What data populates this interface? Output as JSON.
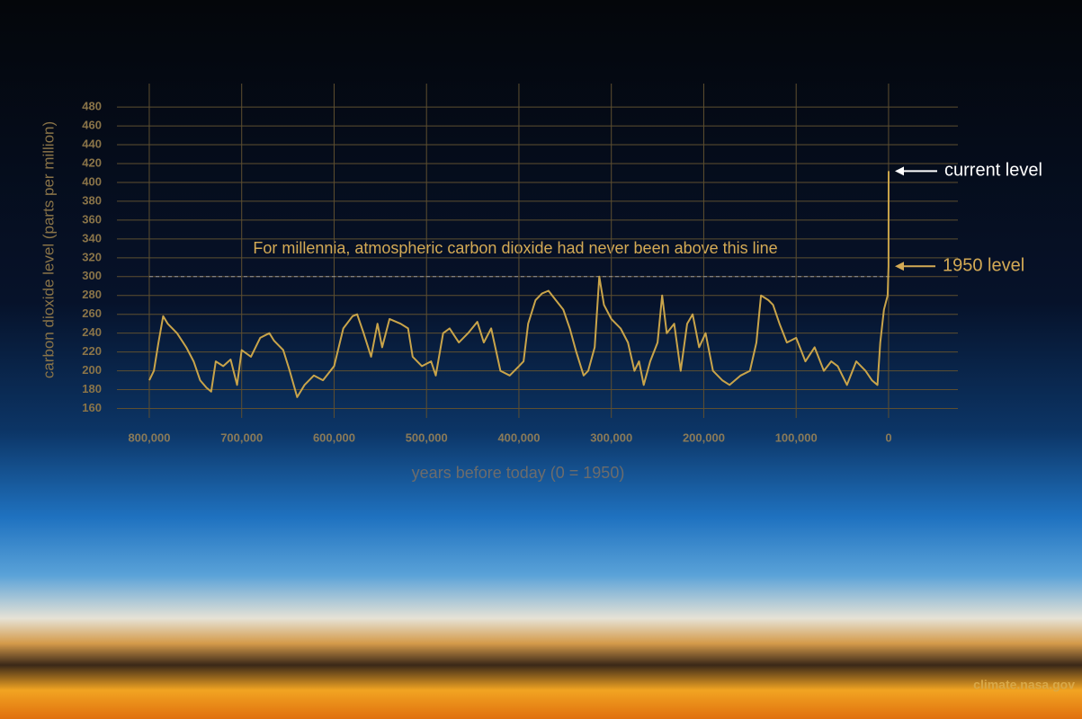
{
  "chart_data": {
    "type": "line",
    "ylabel": "carbon dioxide level (parts per million)",
    "xlabel": "years before today (0 = 1950)",
    "annotation": "For millennia, atmospheric carbon dioxide had never been above this line",
    "threshold": 300,
    "current_label": "current level",
    "level_1950_label": "1950 level",
    "source": "climate.nasa.gov",
    "color": "#c9a44a",
    "grid": true,
    "xlim": [
      835000,
      -75000
    ],
    "ylim": [
      150,
      503
    ],
    "xticks": [
      {
        "value": 800000,
        "label": "800,000"
      },
      {
        "value": 700000,
        "label": "700,000"
      },
      {
        "value": 600000,
        "label": "600,000"
      },
      {
        "value": 500000,
        "label": "500,000"
      },
      {
        "value": 400000,
        "label": "400,000"
      },
      {
        "value": 300000,
        "label": "300,000"
      },
      {
        "value": 200000,
        "label": "200,000"
      },
      {
        "value": 100000,
        "label": "100,000"
      },
      0
    ],
    "yticks": [
      160,
      180,
      200,
      220,
      240,
      260,
      280,
      300,
      320,
      340,
      360,
      380,
      400,
      420,
      440,
      460,
      480
    ],
    "x": [
      800000,
      795000,
      790000,
      785000,
      780000,
      770000,
      760000,
      752000,
      745000,
      738000,
      733000,
      728000,
      720000,
      712000,
      705000,
      700000,
      690000,
      680000,
      670000,
      665000,
      655000,
      648000,
      640000,
      632000,
      622000,
      612000,
      600000,
      590000,
      580000,
      575000,
      568000,
      560000,
      553000,
      548000,
      540000,
      528000,
      520000,
      515000,
      505000,
      495000,
      490000,
      482000,
      475000,
      465000,
      455000,
      445000,
      438000,
      430000,
      420000,
      410000,
      400000,
      395000,
      390000,
      382000,
      375000,
      368000,
      360000,
      352000,
      345000,
      338000,
      330000,
      325000,
      318000,
      313000,
      308000,
      300000,
      290000,
      282000,
      275000,
      270000,
      265000,
      258000,
      250000,
      245000,
      240000,
      232000,
      225000,
      218000,
      212000,
      205000,
      198000,
      190000,
      180000,
      172000,
      160000,
      150000,
      143000,
      138000,
      130000,
      125000,
      118000,
      110000,
      100000,
      90000,
      80000,
      70000,
      62000,
      55000,
      45000,
      35000,
      25000,
      18000,
      12000,
      9000,
      5000,
      1000,
      0,
      -70
    ],
    "values": [
      190,
      200,
      230,
      258,
      250,
      240,
      225,
      210,
      190,
      182,
      178,
      210,
      205,
      212,
      185,
      222,
      215,
      235,
      240,
      232,
      222,
      200,
      172,
      185,
      195,
      190,
      205,
      245,
      258,
      260,
      240,
      215,
      250,
      225,
      255,
      250,
      245,
      215,
      205,
      210,
      195,
      240,
      245,
      230,
      240,
      252,
      230,
      245,
      200,
      195,
      205,
      210,
      250,
      275,
      282,
      285,
      275,
      265,
      245,
      220,
      195,
      200,
      225,
      300,
      270,
      255,
      245,
      230,
      200,
      210,
      185,
      210,
      230,
      280,
      240,
      250,
      200,
      250,
      260,
      225,
      240,
      200,
      190,
      185,
      195,
      200,
      230,
      280,
      275,
      270,
      250,
      230,
      235,
      210,
      225,
      200,
      210,
      205,
      185,
      210,
      200,
      190,
      185,
      230,
      265,
      280,
      311,
      412
    ]
  }
}
